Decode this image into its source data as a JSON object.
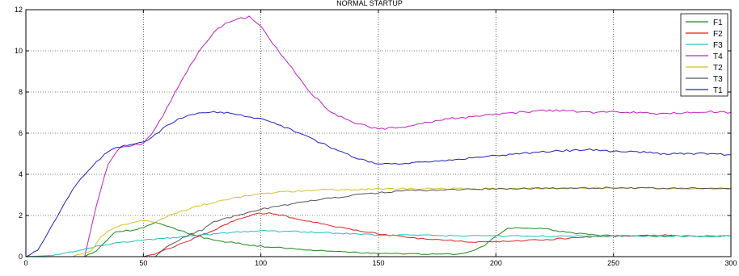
{
  "chart_data": {
    "type": "line",
    "title": "NORMAL STARTUP",
    "xlabel": "",
    "ylabel": "",
    "xlim": [
      0,
      300
    ],
    "ylim": [
      0,
      12
    ],
    "xticks": [
      0,
      50,
      100,
      150,
      200,
      250,
      300
    ],
    "yticks": [
      0,
      2,
      4,
      6,
      8,
      10,
      12
    ],
    "grid": true,
    "legend_position": "top-right",
    "series": [
      {
        "name": "F1",
        "color": "#1a8a1a",
        "x": [
          0,
          25,
          30,
          38,
          46,
          50,
          55,
          60,
          70,
          80,
          100,
          130,
          150,
          185,
          195,
          200,
          205,
          210,
          220,
          230,
          240,
          255,
          270,
          300
        ],
        "y": [
          0,
          0,
          0.3,
          1.2,
          1.3,
          1.4,
          1.65,
          1.5,
          1.1,
          0.8,
          0.5,
          0.25,
          0.15,
          0.12,
          0.5,
          1.0,
          1.35,
          1.4,
          1.35,
          1.2,
          1.05,
          1.0,
          1.0,
          1.0
        ]
      },
      {
        "name": "F2",
        "color": "#e02020",
        "x": [
          0,
          50,
          55,
          60,
          70,
          80,
          90,
          98,
          105,
          115,
          130,
          150,
          170,
          190,
          200,
          220,
          240,
          260,
          275
        ],
        "y": [
          0,
          0,
          0.15,
          0.35,
          0.8,
          1.3,
          1.8,
          2.1,
          2.1,
          1.85,
          1.5,
          1.1,
          0.85,
          0.72,
          0.72,
          0.82,
          0.95,
          1.02,
          1.05
        ]
      },
      {
        "name": "F3",
        "color": "#20c0c0",
        "x": [
          0,
          10,
          20,
          30,
          40,
          50,
          60,
          70,
          80,
          90,
          100,
          120,
          150,
          200,
          250,
          300
        ],
        "y": [
          0,
          0.05,
          0.25,
          0.5,
          0.7,
          0.8,
          0.9,
          1.0,
          1.1,
          1.2,
          1.25,
          1.2,
          1.05,
          1.0,
          1.0,
          1.0
        ]
      },
      {
        "name": "T4",
        "color": "#c020c0",
        "x": [
          0,
          25,
          30,
          35,
          40,
          45,
          50,
          55,
          60,
          65,
          70,
          75,
          80,
          85,
          90,
          95,
          100,
          105,
          110,
          115,
          120,
          130,
          140,
          150,
          160,
          170,
          180,
          190,
          200,
          210,
          220,
          230,
          240,
          250,
          260,
          270,
          280,
          290,
          300
        ],
        "y": [
          0,
          0,
          2.5,
          4.5,
          5.3,
          5.4,
          5.5,
          6.2,
          7.2,
          8.3,
          9.3,
          10.2,
          10.9,
          11.3,
          11.5,
          11.7,
          11.2,
          10.4,
          9.6,
          8.9,
          8.1,
          7.0,
          6.5,
          6.2,
          6.3,
          6.5,
          6.7,
          6.8,
          6.9,
          7.0,
          7.1,
          7.1,
          7.0,
          7.05,
          7.0,
          6.95,
          7.0,
          7.05,
          7.0
        ]
      },
      {
        "name": "T2",
        "color": "#d8c020",
        "x": [
          0,
          20,
          28,
          32,
          38,
          45,
          50,
          55,
          60,
          70,
          80,
          90,
          100,
          110,
          120,
          130,
          140,
          150,
          200,
          250,
          300
        ],
        "y": [
          0,
          0,
          0.3,
          1.0,
          1.45,
          1.65,
          1.75,
          1.7,
          1.95,
          2.35,
          2.65,
          2.9,
          3.05,
          3.15,
          3.2,
          3.25,
          3.25,
          3.3,
          3.3,
          3.35,
          3.3
        ]
      },
      {
        "name": "T3",
        "color": "#555555",
        "x": [
          0,
          55,
          60,
          65,
          70,
          75,
          80,
          90,
          100,
          110,
          120,
          130,
          140,
          150,
          160,
          200,
          250,
          300
        ],
        "y": [
          0,
          0,
          0.5,
          0.8,
          1.1,
          1.3,
          1.7,
          2.0,
          2.3,
          2.5,
          2.7,
          2.85,
          3.0,
          3.1,
          3.2,
          3.3,
          3.35,
          3.3
        ]
      },
      {
        "name": "T1",
        "color": "#2020c0",
        "x": [
          0,
          5,
          10,
          15,
          20,
          25,
          30,
          35,
          40,
          45,
          50,
          55,
          60,
          65,
          70,
          75,
          80,
          90,
          100,
          110,
          120,
          130,
          140,
          150,
          160,
          170,
          180,
          190,
          200,
          210,
          220,
          230,
          240,
          250,
          260,
          270,
          280,
          290,
          300
        ],
        "y": [
          0,
          0.3,
          1.3,
          2.3,
          3.3,
          4.0,
          4.6,
          5.1,
          5.35,
          5.45,
          5.55,
          5.9,
          6.4,
          6.7,
          6.85,
          7.0,
          7.05,
          6.9,
          6.7,
          6.3,
          5.8,
          5.3,
          4.8,
          4.5,
          4.5,
          4.6,
          4.7,
          4.8,
          4.9,
          5.0,
          5.1,
          5.15,
          5.2,
          5.1,
          5.1,
          5.0,
          5.0,
          5.0,
          4.95
        ]
      }
    ]
  }
}
